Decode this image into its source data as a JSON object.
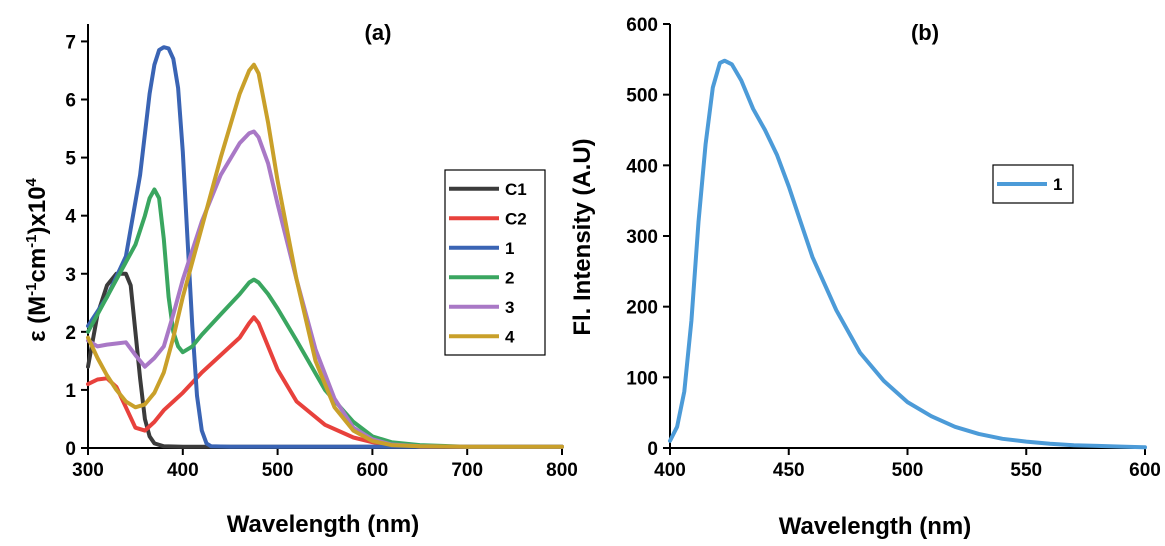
{
  "chart_data": [
    {
      "type": "line",
      "title": "(a)",
      "xlabel": "Wavelength (nm)",
      "ylabel": "ε  (M-1cm-1)x104",
      "ylabel_parts": [
        "ε  (M",
        "-1",
        "cm",
        "-1",
        ")x10",
        "4"
      ],
      "xlim": [
        300,
        800
      ],
      "ylim": [
        0,
        7.3
      ],
      "xticks": [
        300,
        400,
        500,
        600,
        700,
        800
      ],
      "yticks": [
        0,
        1,
        2,
        3,
        4,
        5,
        6,
        7
      ],
      "legend_position": "right",
      "series": [
        {
          "name": "C1",
          "color": "#3b3b3b",
          "x": [
            300,
            310,
            320,
            330,
            340,
            345,
            350,
            355,
            360,
            365,
            370,
            380,
            400,
            450,
            500,
            600,
            800
          ],
          "y": [
            1.4,
            2.3,
            2.8,
            3.0,
            3.0,
            2.8,
            2.0,
            1.2,
            0.5,
            0.2,
            0.08,
            0.03,
            0.02,
            0.02,
            0.02,
            0.02,
            0.02
          ]
        },
        {
          "name": "C2",
          "color": "#e8413c",
          "x": [
            300,
            310,
            320,
            330,
            340,
            350,
            360,
            370,
            380,
            390,
            400,
            420,
            440,
            460,
            470,
            475,
            480,
            490,
            500,
            520,
            550,
            580,
            600,
            620,
            650,
            700,
            800
          ],
          "y": [
            1.1,
            1.18,
            1.2,
            1.05,
            0.7,
            0.35,
            0.3,
            0.45,
            0.65,
            0.8,
            0.95,
            1.3,
            1.6,
            1.9,
            2.15,
            2.25,
            2.15,
            1.75,
            1.35,
            0.8,
            0.4,
            0.18,
            0.1,
            0.05,
            0.02,
            0.02,
            0.02
          ]
        },
        {
          "name": "1",
          "color": "#3a64b4",
          "x": [
            300,
            320,
            340,
            355,
            365,
            370,
            375,
            380,
            385,
            390,
            395,
            400,
            405,
            410,
            415,
            420,
            425,
            430,
            450,
            500,
            800
          ],
          "y": [
            2.1,
            2.6,
            3.3,
            4.7,
            6.1,
            6.6,
            6.85,
            6.9,
            6.88,
            6.7,
            6.2,
            5.1,
            3.6,
            2.1,
            0.9,
            0.3,
            0.08,
            0.03,
            0.02,
            0.02,
            0.02
          ]
        },
        {
          "name": "2",
          "color": "#3aa660",
          "x": [
            300,
            310,
            330,
            350,
            360,
            365,
            370,
            375,
            380,
            385,
            390,
            395,
            400,
            410,
            420,
            440,
            460,
            470,
            475,
            480,
            490,
            500,
            520,
            550,
            580,
            600,
            620,
            650,
            700,
            800
          ],
          "y": [
            2.0,
            2.3,
            2.9,
            3.5,
            4.0,
            4.3,
            4.45,
            4.3,
            3.6,
            2.6,
            2.0,
            1.75,
            1.65,
            1.75,
            1.95,
            2.3,
            2.65,
            2.85,
            2.9,
            2.85,
            2.65,
            2.4,
            1.85,
            1.0,
            0.45,
            0.2,
            0.1,
            0.05,
            0.02,
            0.02
          ]
        },
        {
          "name": "3",
          "color": "#a978c6",
          "x": [
            300,
            310,
            320,
            330,
            340,
            350,
            360,
            370,
            380,
            390,
            400,
            420,
            440,
            460,
            470,
            475,
            480,
            490,
            500,
            520,
            540,
            560,
            580,
            600,
            620,
            650,
            700,
            800
          ],
          "y": [
            1.85,
            1.75,
            1.78,
            1.8,
            1.82,
            1.6,
            1.4,
            1.55,
            1.75,
            2.3,
            2.9,
            3.9,
            4.7,
            5.25,
            5.42,
            5.45,
            5.35,
            4.9,
            4.2,
            2.9,
            1.7,
            0.85,
            0.35,
            0.15,
            0.06,
            0.03,
            0.02,
            0.02
          ]
        },
        {
          "name": "4",
          "color": "#c9a02a",
          "x": [
            300,
            310,
            320,
            330,
            340,
            350,
            360,
            370,
            380,
            390,
            400,
            420,
            440,
            460,
            470,
            475,
            480,
            490,
            500,
            520,
            540,
            560,
            580,
            600,
            620,
            650,
            700,
            800
          ],
          "y": [
            1.9,
            1.55,
            1.25,
            1.0,
            0.8,
            0.7,
            0.75,
            0.95,
            1.3,
            1.9,
            2.6,
            3.8,
            5.0,
            6.1,
            6.5,
            6.6,
            6.45,
            5.6,
            4.6,
            2.9,
            1.5,
            0.7,
            0.3,
            0.12,
            0.05,
            0.03,
            0.02,
            0.02
          ]
        }
      ]
    },
    {
      "type": "line",
      "title": "(b)",
      "xlabel": "Wavelength (nm)",
      "ylabel": "Fl. Intensity (A.U)",
      "xlim": [
        400,
        600
      ],
      "ylim": [
        0,
        600
      ],
      "xticks": [
        400,
        450,
        500,
        550,
        600
      ],
      "yticks": [
        0,
        100,
        200,
        300,
        400,
        500,
        600
      ],
      "legend_position": "right",
      "series": [
        {
          "name": "1",
          "color": "#4c9bd8",
          "x": [
            400,
            403,
            406,
            409,
            412,
            415,
            418,
            421,
            423,
            426,
            430,
            435,
            440,
            445,
            450,
            455,
            460,
            470,
            480,
            490,
            500,
            510,
            520,
            530,
            540,
            550,
            560,
            570,
            580,
            590,
            600
          ],
          "y": [
            10,
            30,
            80,
            180,
            320,
            430,
            510,
            545,
            548,
            543,
            520,
            480,
            450,
            415,
            370,
            320,
            270,
            195,
            135,
            95,
            65,
            45,
            30,
            20,
            13,
            9,
            6,
            4,
            3,
            2,
            1
          ]
        }
      ]
    }
  ]
}
